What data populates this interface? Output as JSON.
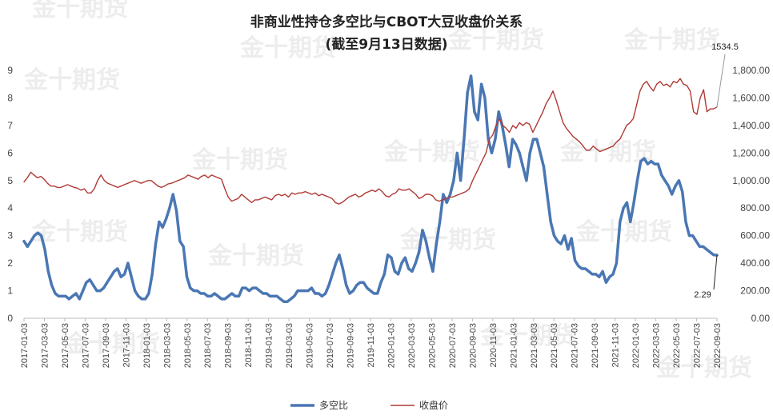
{
  "chart_data": {
    "type": "line",
    "title": "非商业性持仓多空比与CBOT大豆收盘价关系",
    "subtitle": "(截至9月13日数据)",
    "watermark": "金十期货",
    "left_axis": {
      "min": 0,
      "max": 9,
      "ticks": [
        "0",
        "1",
        "2",
        "3",
        "4",
        "5",
        "6",
        "7",
        "8",
        "9"
      ]
    },
    "right_axis": {
      "min": 0,
      "max": 1800,
      "ticks": [
        "0.00",
        "200.00",
        "400.00",
        "600.00",
        "800.00",
        "1,000.00",
        "1,200.00",
        "1,400.00",
        "1,600.00",
        "1,800.00"
      ]
    },
    "x_labels": [
      "2017-01-03",
      "2017-03-03",
      "2017-05-03",
      "2017-07-03",
      "2017-09-03",
      "2017-11-03",
      "2018-01-03",
      "2018-03-03",
      "2018-05-03",
      "2018-07-03",
      "2018-09-03",
      "2018-11-03",
      "2019-01-03",
      "2019-03-03",
      "2019-05-03",
      "2019-07-03",
      "2019-09-03",
      "2019-11-03",
      "2020-01-03",
      "2020-03-03",
      "2020-05-03",
      "2020-07-03",
      "2020-09-03",
      "2020-11-03",
      "2021-01-03",
      "2021-03-03",
      "2021-05-03",
      "2021-07-03",
      "2021-09-03",
      "2021-11-03",
      "2022-01-03",
      "2022-03-03",
      "2022-05-03",
      "2022-07-03",
      "2022-09-03"
    ],
    "series": [
      {
        "name": "多空比",
        "color": "#4a77b4",
        "axis": "left",
        "values": [
          2.8,
          2.6,
          2.8,
          3.0,
          3.1,
          3.0,
          2.5,
          1.7,
          1.2,
          0.9,
          0.8,
          0.8,
          0.8,
          0.7,
          0.8,
          0.9,
          0.7,
          1.0,
          1.3,
          1.4,
          1.2,
          1.0,
          1.0,
          1.1,
          1.3,
          1.5,
          1.7,
          1.8,
          1.5,
          1.6,
          2.0,
          1.5,
          1.0,
          0.8,
          0.7,
          0.7,
          0.9,
          1.6,
          2.7,
          3.5,
          3.3,
          3.6,
          4.0,
          4.5,
          3.9,
          2.8,
          2.6,
          1.5,
          1.1,
          1.0,
          1.0,
          0.9,
          0.9,
          0.8,
          0.8,
          0.9,
          0.8,
          0.7,
          0.7,
          0.8,
          0.9,
          0.8,
          0.8,
          1.1,
          1.1,
          1.0,
          1.1,
          1.1,
          1.0,
          0.9,
          0.9,
          0.8,
          0.8,
          0.8,
          0.7,
          0.6,
          0.6,
          0.7,
          0.8,
          1.0,
          1.0,
          1.0,
          1.0,
          1.1,
          0.9,
          0.9,
          0.8,
          0.9,
          1.2,
          1.6,
          2.0,
          2.3,
          1.8,
          1.2,
          0.9,
          1.0,
          1.2,
          1.3,
          1.3,
          1.1,
          1.0,
          0.9,
          0.9,
          1.3,
          1.6,
          2.3,
          2.2,
          1.7,
          1.6,
          2.0,
          2.2,
          1.8,
          1.7,
          2.0,
          2.4,
          3.2,
          2.8,
          2.2,
          1.7,
          2.7,
          3.5,
          4.5,
          4.2,
          4.5,
          5.0,
          6.0,
          5.0,
          6.5,
          8.2,
          8.8,
          7.5,
          7.2,
          8.5,
          8.0,
          6.5,
          6.0,
          6.5,
          7.5,
          7.0,
          6.3,
          5.5,
          6.5,
          6.3,
          6.0,
          5.5,
          5.0,
          6.0,
          6.5,
          6.5,
          6.0,
          5.5,
          4.5,
          3.5,
          3.0,
          2.8,
          2.7,
          3.0,
          2.5,
          2.9,
          2.1,
          1.9,
          1.8,
          1.8,
          1.7,
          1.6,
          1.6,
          1.5,
          1.7,
          1.3,
          1.5,
          1.6,
          2.0,
          3.5,
          4.0,
          4.2,
          3.5,
          4.2,
          5.0,
          5.7,
          5.8,
          5.6,
          5.7,
          5.6,
          5.6,
          5.2,
          5.0,
          4.8,
          4.5,
          4.8,
          5.0,
          4.6,
          3.5,
          3.0,
          3.0,
          2.8,
          2.6,
          2.6,
          2.5,
          2.4,
          2.3,
          2.29
        ]
      },
      {
        "name": "收盘价",
        "color": "#b03a35",
        "axis": "right",
        "values": [
          990,
          1020,
          1060,
          1040,
          1020,
          1030,
          1010,
          980,
          960,
          960,
          950,
          950,
          960,
          970,
          960,
          950,
          945,
          930,
          940,
          910,
          910,
          940,
          1000,
          1040,
          1000,
          980,
          970,
          960,
          950,
          960,
          970,
          980,
          990,
          1000,
          990,
          980,
          990,
          1000,
          1000,
          980,
          960,
          950,
          960,
          975,
          980,
          990,
          1000,
          1010,
          1020,
          1040,
          1030,
          1020,
          1010,
          1030,
          1040,
          1020,
          1040,
          1030,
          1020,
          1010,
          940,
          880,
          850,
          860,
          870,
          900,
          880,
          860,
          840,
          860,
          860,
          870,
          880,
          870,
          860,
          890,
          900,
          890,
          900,
          880,
          910,
          900,
          910,
          910,
          920,
          910,
          900,
          910,
          890,
          900,
          890,
          880,
          870,
          840,
          830,
          840,
          860,
          880,
          890,
          900,
          880,
          890,
          910,
          920,
          930,
          920,
          940,
          920,
          890,
          880,
          900,
          910,
          940,
          930,
          930,
          940,
          920,
          900,
          870,
          880,
          900,
          900,
          890,
          860,
          850,
          860,
          870,
          880,
          880,
          890,
          900,
          910,
          920,
          940,
          1000,
          1050,
          1100,
          1150,
          1200,
          1300,
          1330,
          1400,
          1450,
          1400,
          1380,
          1350,
          1400,
          1380,
          1420,
          1400,
          1420,
          1410,
          1350,
          1400,
          1450,
          1500,
          1560,
          1600,
          1650,
          1580,
          1500,
          1420,
          1380,
          1350,
          1320,
          1300,
          1280,
          1250,
          1220,
          1220,
          1250,
          1230,
          1210,
          1220,
          1230,
          1240,
          1250,
          1280,
          1300,
          1350,
          1400,
          1420,
          1450,
          1550,
          1650,
          1700,
          1720,
          1680,
          1650,
          1700,
          1720,
          1690,
          1700,
          1680,
          1720,
          1710,
          1740,
          1700,
          1690,
          1650,
          1500,
          1480,
          1600,
          1660,
          1500,
          1520,
          1520,
          1534.5
        ]
      }
    ],
    "annotations": [
      {
        "text": "1534.5",
        "series": "收盘价"
      },
      {
        "text": "2.29",
        "series": "多空比"
      }
    ],
    "legend": {
      "position": "bottom",
      "items": [
        "多空比",
        "收盘价"
      ]
    },
    "grid": false
  }
}
